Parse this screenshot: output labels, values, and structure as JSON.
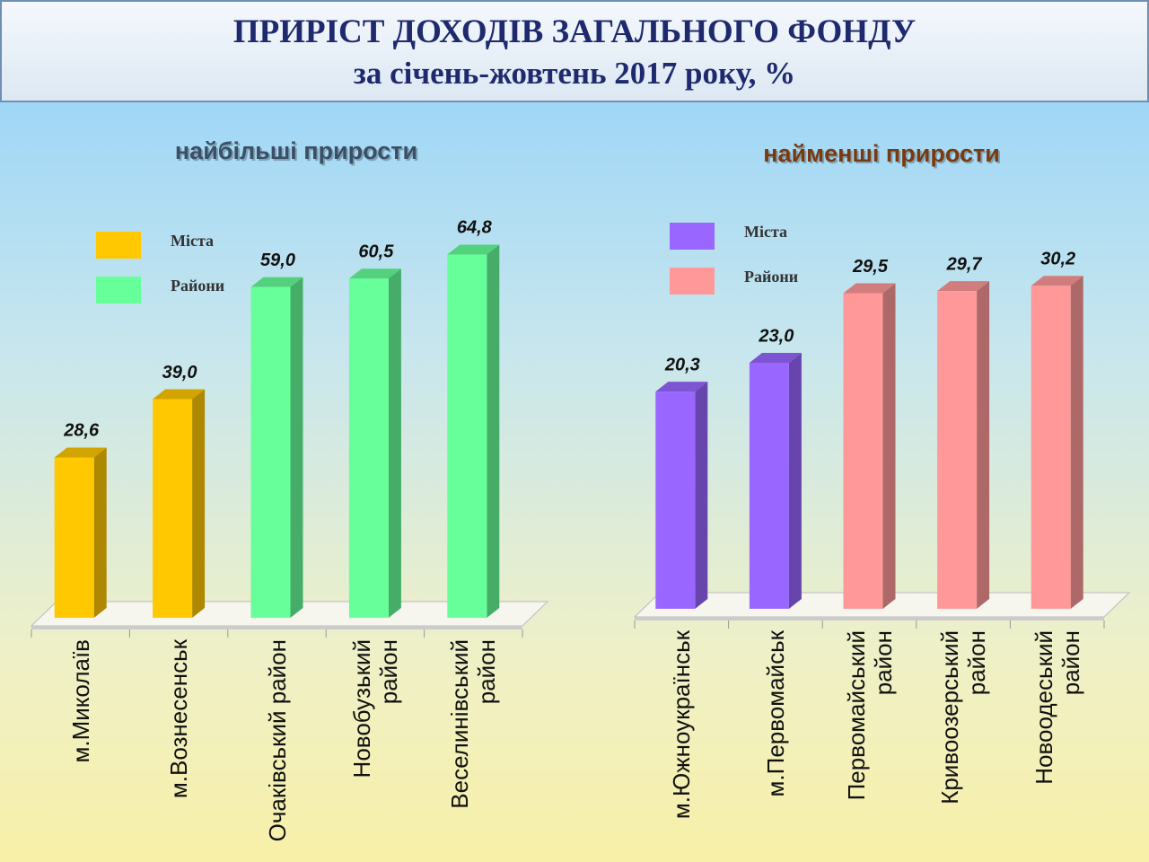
{
  "header": {
    "title": "ПРИРІСТ ДОХОДІВ ЗАГАЛЬНОГО ФОНДУ",
    "subtitle": "за січень-жовтень 2017 року, %"
  },
  "chart_data": [
    {
      "type": "bar",
      "title": "найбільші прирости",
      "title_color": "#3b4f66",
      "categories": [
        "м.Миколаїв",
        "м.Вознесенськ",
        "Очаківський район",
        "Новобузький район",
        "Веселинівський район"
      ],
      "series": [
        {
          "name": "Міста",
          "color": "#ffc800",
          "values": [
            28.6,
            39.0,
            null,
            null,
            null
          ],
          "value_labels": [
            "28,6",
            "39,0",
            null,
            null,
            null
          ]
        },
        {
          "name": "Райони",
          "color": "#66ff99",
          "values": [
            null,
            null,
            59.0,
            60.5,
            64.8
          ],
          "value_labels": [
            null,
            null,
            "59,0",
            "60,5",
            "64,8"
          ]
        }
      ],
      "ylim": [
        0,
        70
      ],
      "legend": "top-left"
    },
    {
      "type": "bar",
      "title": "найменші прирости",
      "title_color": "#7a3a10",
      "categories": [
        "м.Южноукраїнськ",
        "м.Первомайськ",
        "Первомайський район",
        "Кривоозерський район",
        "Новоодеський район"
      ],
      "series": [
        {
          "name": "Міста",
          "color": "#9966ff",
          "values": [
            20.3,
            23.0,
            null,
            null,
            null
          ],
          "value_labels": [
            "20,3",
            "23,0",
            null,
            null,
            null
          ]
        },
        {
          "name": "Райони",
          "color": "#ff9999",
          "values": [
            null,
            null,
            29.5,
            29.7,
            30.2
          ],
          "value_labels": [
            null,
            null,
            "29,5",
            "29,7",
            "30,2"
          ]
        }
      ],
      "ylim": [
        0,
        35
      ],
      "legend": "top-left"
    }
  ]
}
